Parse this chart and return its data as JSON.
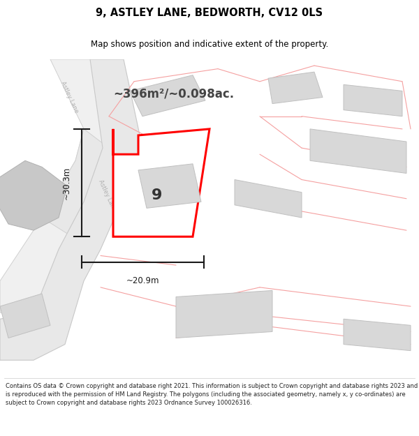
{
  "title": "9, ASTLEY LANE, BEDWORTH, CV12 0LS",
  "subtitle": "Map shows position and indicative extent of the property.",
  "area_text": "~396m²/~0.098ac.",
  "label_number": "9",
  "dim_horizontal": "~20.9m",
  "dim_vertical": "~30.3m",
  "footer": "Contains OS data © Crown copyright and database right 2021. This information is subject to Crown copyright and database rights 2023 and is reproduced with the permission of HM Land Registry. The polygons (including the associated geometry, namely x, y co-ordinates) are subject to Crown copyright and database rights 2023 Ordnance Survey 100026316.",
  "bg_color": "#ffffff",
  "map_bg": "#ffffff",
  "road_fill": "#e8e8e8",
  "road_edge": "#cccccc",
  "plot_fill": "#ffffff",
  "plot_edge": "#ff0000",
  "pink_edge": "#f5a0a0",
  "building_fill": "#d8d8d8",
  "building_edge": "#c0c0c0",
  "road_text_color": "#aaaaaa",
  "title_color": "#000000",
  "measure_color": "#1a1a1a",
  "area_text_color": "#444444",
  "footer_color": "#222222",
  "separator_color": "#cccccc"
}
